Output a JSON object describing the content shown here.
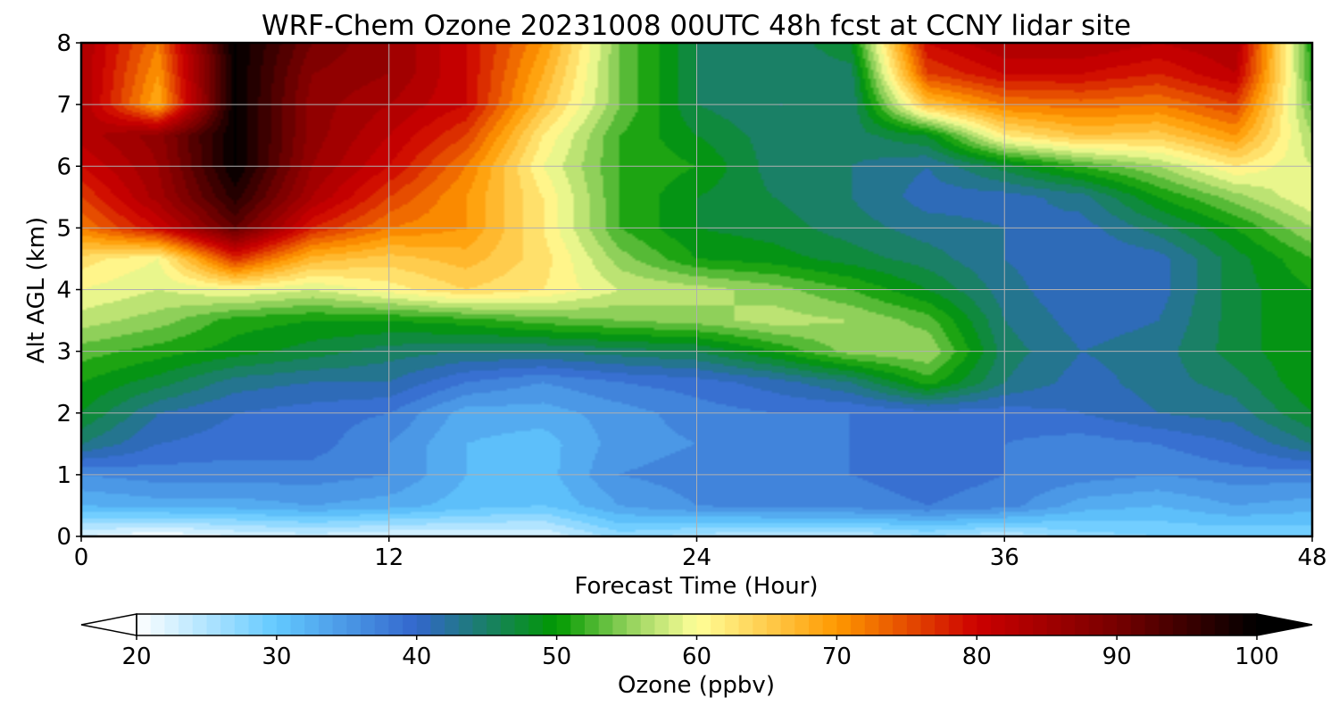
{
  "chart_data": {
    "type": "heatmap",
    "subtype": "filled-contour time-height cross section",
    "title": "WRF-Chem Ozone  20231008 00UTC 48h fcst at CCNY lidar site",
    "xlabel": "Forecast Time (Hour)",
    "ylabel": "Alt AGL (km)",
    "xlim": [
      0,
      48
    ],
    "ylim": [
      0,
      8
    ],
    "xticks": [
      0,
      12,
      24,
      36,
      48
    ],
    "yticks": [
      0,
      1,
      2,
      3,
      4,
      5,
      6,
      7,
      8
    ],
    "grid": true,
    "colorbar": {
      "label": "Ozone  (ppbv)",
      "range": [
        20,
        100
      ],
      "ticks": [
        20,
        30,
        40,
        50,
        60,
        70,
        80,
        90,
        100
      ],
      "extend": "both",
      "orientation": "horizontal",
      "colors": [
        {
          "value": 20,
          "color": "#ffffff"
        },
        {
          "value": 30,
          "color": "#62c9ff"
        },
        {
          "value": 40,
          "color": "#3366cc"
        },
        {
          "value": 50,
          "color": "#009900"
        },
        {
          "value": 55,
          "color": "#8fd05a"
        },
        {
          "value": 60,
          "color": "#ffff99"
        },
        {
          "value": 70,
          "color": "#ff9900"
        },
        {
          "value": 80,
          "color": "#cc0000"
        },
        {
          "value": 90,
          "color": "#770000"
        },
        {
          "value": 100,
          "color": "#000000"
        }
      ]
    },
    "x_hours": [
      0,
      3,
      6,
      9,
      12,
      15,
      18,
      21,
      24,
      27,
      30,
      33,
      36,
      39,
      42,
      45,
      48
    ],
    "z_km": [
      0,
      0.5,
      1,
      1.5,
      2,
      2.5,
      3,
      3.5,
      4,
      4.5,
      5,
      5.5,
      6,
      6.5,
      7,
      7.5,
      8
    ],
    "ozone_ppbv": [
      [
        22,
        20,
        22,
        23,
        22,
        22,
        22,
        27,
        25,
        24,
        24,
        26,
        24,
        27,
        28,
        28,
        28
      ],
      [
        32,
        33,
        33,
        34,
        33,
        31,
        30,
        34,
        36,
        37,
        37,
        38,
        37,
        33,
        32,
        34,
        33
      ],
      [
        36,
        37,
        37,
        37,
        36,
        32,
        31,
        36,
        37,
        37,
        38,
        39,
        38,
        37,
        36,
        37,
        37
      ],
      [
        44,
        40,
        39,
        39,
        36,
        32,
        31,
        35,
        36,
        37,
        38,
        39,
        38,
        37,
        38,
        40,
        44
      ],
      [
        48,
        42,
        40,
        39,
        38,
        33,
        33,
        35,
        37,
        38,
        38,
        39,
        39,
        40,
        42,
        43,
        48
      ],
      [
        50,
        47,
        43,
        42,
        42,
        38,
        36,
        38,
        39,
        41,
        44,
        51,
        44,
        41,
        43,
        45,
        50
      ],
      [
        53,
        51,
        49,
        47,
        45,
        44,
        44,
        45,
        46,
        50,
        55,
        56,
        45,
        42,
        43,
        47,
        50
      ],
      [
        57,
        55,
        51,
        50,
        50,
        51,
        53,
        54,
        55,
        57,
        56,
        53,
        44,
        41,
        42,
        47,
        50
      ],
      [
        60,
        58,
        60,
        58,
        61,
        64,
        62,
        58,
        57,
        55,
        52,
        48,
        43,
        40,
        41,
        47,
        50
      ],
      [
        63,
        60,
        77,
        67,
        65,
        67,
        63,
        55,
        50,
        49,
        47,
        45,
        42,
        40,
        41,
        47,
        52
      ],
      [
        72,
        80,
        92,
        78,
        72,
        70,
        62,
        52,
        48,
        47,
        45,
        43,
        42,
        41,
        45,
        50,
        56
      ],
      [
        76,
        85,
        97,
        84,
        76,
        70,
        62,
        52,
        48,
        46,
        44,
        41,
        41,
        43,
        50,
        55,
        60
      ],
      [
        80,
        86,
        100,
        86,
        80,
        72,
        60,
        52,
        50,
        45,
        44,
        42,
        47,
        52,
        56,
        62,
        58
      ],
      [
        83,
        87,
        100,
        87,
        82,
        76,
        62,
        52,
        48,
        45,
        45,
        48,
        62,
        66,
        65,
        70,
        56
      ],
      [
        84,
        68,
        100,
        87,
        84,
        80,
        66,
        54,
        46,
        44,
        44,
        66,
        72,
        73,
        72,
        76,
        53
      ],
      [
        84,
        70,
        100,
        88,
        86,
        80,
        68,
        54,
        46,
        44,
        45,
        76,
        80,
        80,
        78,
        82,
        51
      ],
      [
        84,
        72,
        100,
        90,
        86,
        80,
        70,
        54,
        46,
        44,
        48,
        80,
        84,
        84,
        82,
        84,
        50
      ]
    ]
  }
}
